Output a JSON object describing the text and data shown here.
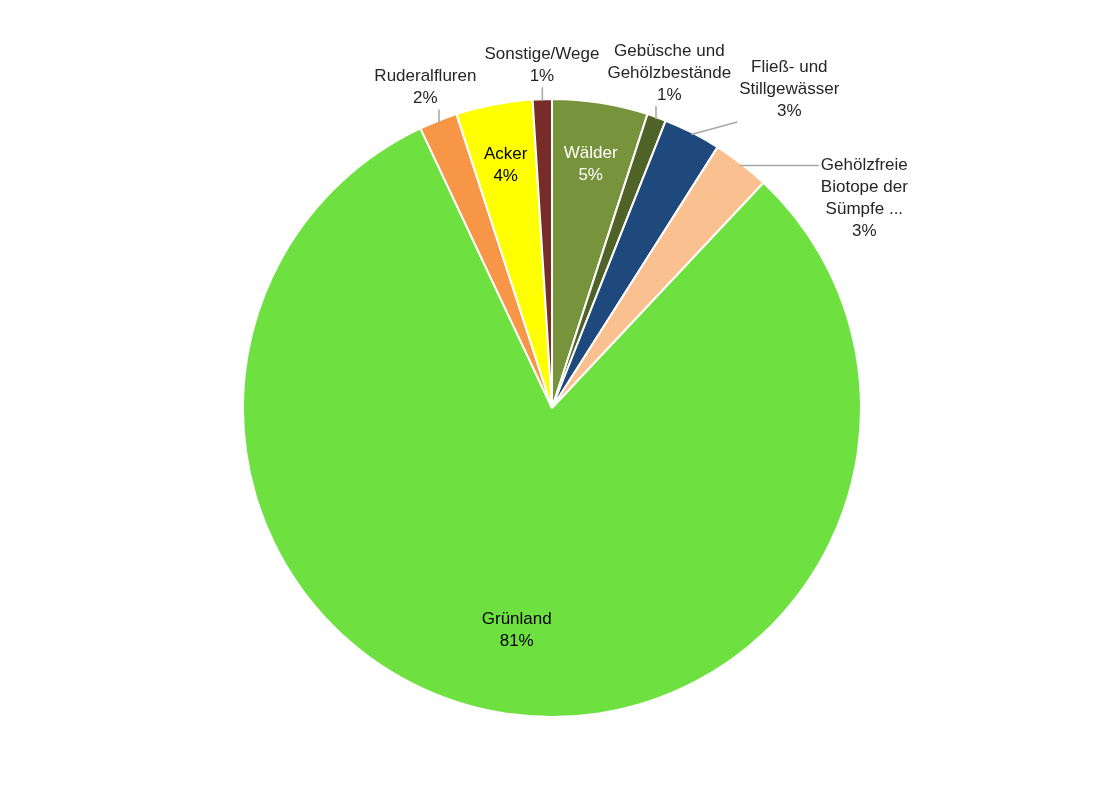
{
  "chart_data": {
    "type": "pie",
    "categories": [
      "Wälder",
      "Gebüsche und Gehölzbestände",
      "Fließ- und Stillgewässer",
      "Gehölzfreie Biotope der Sümpfe ...",
      "Grünland",
      "Ruderalfluren",
      "Acker",
      "Sonstige/Wege"
    ],
    "values": [
      5,
      1,
      3,
      3,
      81,
      2,
      4,
      1
    ],
    "colors": [
      "#77933c",
      "#4f6228",
      "#1f497d",
      "#fac090",
      "#6ee040",
      "#f79646",
      "#ffff00",
      "#772c2a"
    ],
    "value_labels": [
      "5%",
      "1%",
      "3%",
      "3%",
      "81%",
      "2%",
      "4%",
      "1%"
    ],
    "legend": false
  }
}
